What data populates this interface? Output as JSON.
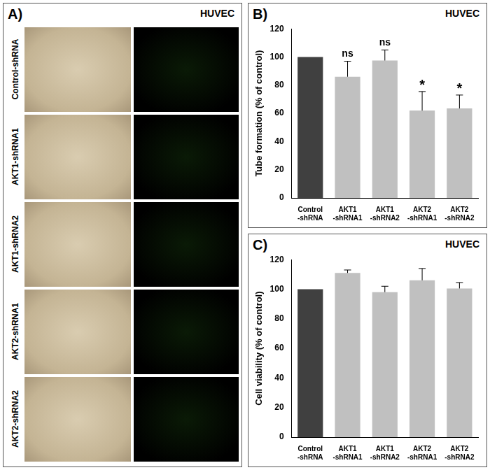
{
  "panel_a": {
    "label": "A)",
    "title": "HUVEC",
    "rows": [
      "Control-shRNA",
      "AKT1-shRNA1",
      "AKT1-shRNA2",
      "AKT2-shRNA1",
      "AKT2-shRNA2"
    ]
  },
  "chart_data": [
    {
      "type": "bar",
      "label": "B)",
      "title": "HUVEC",
      "y_label": "Tube formation (% of control)",
      "categories": [
        "Control\n-shRNA",
        "AKT1\n-shRNA1",
        "AKT1\n-shRNA2",
        "AKT2\n-shRNA1",
        "AKT2\n-shRNA2"
      ],
      "values": [
        100,
        86,
        97.5,
        62,
        63.5
      ],
      "errors": [
        0,
        11,
        7.5,
        13.5,
        9.5
      ],
      "annotations": [
        null,
        "ns",
        "ns",
        "*",
        "*"
      ],
      "colors": [
        "#404040",
        "#c0c0c0",
        "#c0c0c0",
        "#c0c0c0",
        "#c0c0c0"
      ],
      "ylim": [
        0,
        120
      ],
      "yticks": [
        0,
        20,
        40,
        60,
        80,
        100,
        120
      ],
      "grid": false
    },
    {
      "type": "bar",
      "label": "C)",
      "title": "HUVEC",
      "y_label": "Cell viability (% of control)",
      "categories": [
        "Control\n-shRNA",
        "AKT1\n-shRNA1",
        "AKT1\n-shRNA2",
        "AKT2\n-shRNA1",
        "AKT2\n-shRNA2"
      ],
      "values": [
        100,
        111,
        98,
        106,
        100.5
      ],
      "errors": [
        0,
        2,
        4,
        8,
        4
      ],
      "colors": [
        "#404040",
        "#c0c0c0",
        "#c0c0c0",
        "#c0c0c0",
        "#c0c0c0"
      ],
      "ylim": [
        0,
        120
      ],
      "yticks": [
        0,
        20,
        40,
        60,
        80,
        100,
        120
      ],
      "grid": false
    }
  ]
}
